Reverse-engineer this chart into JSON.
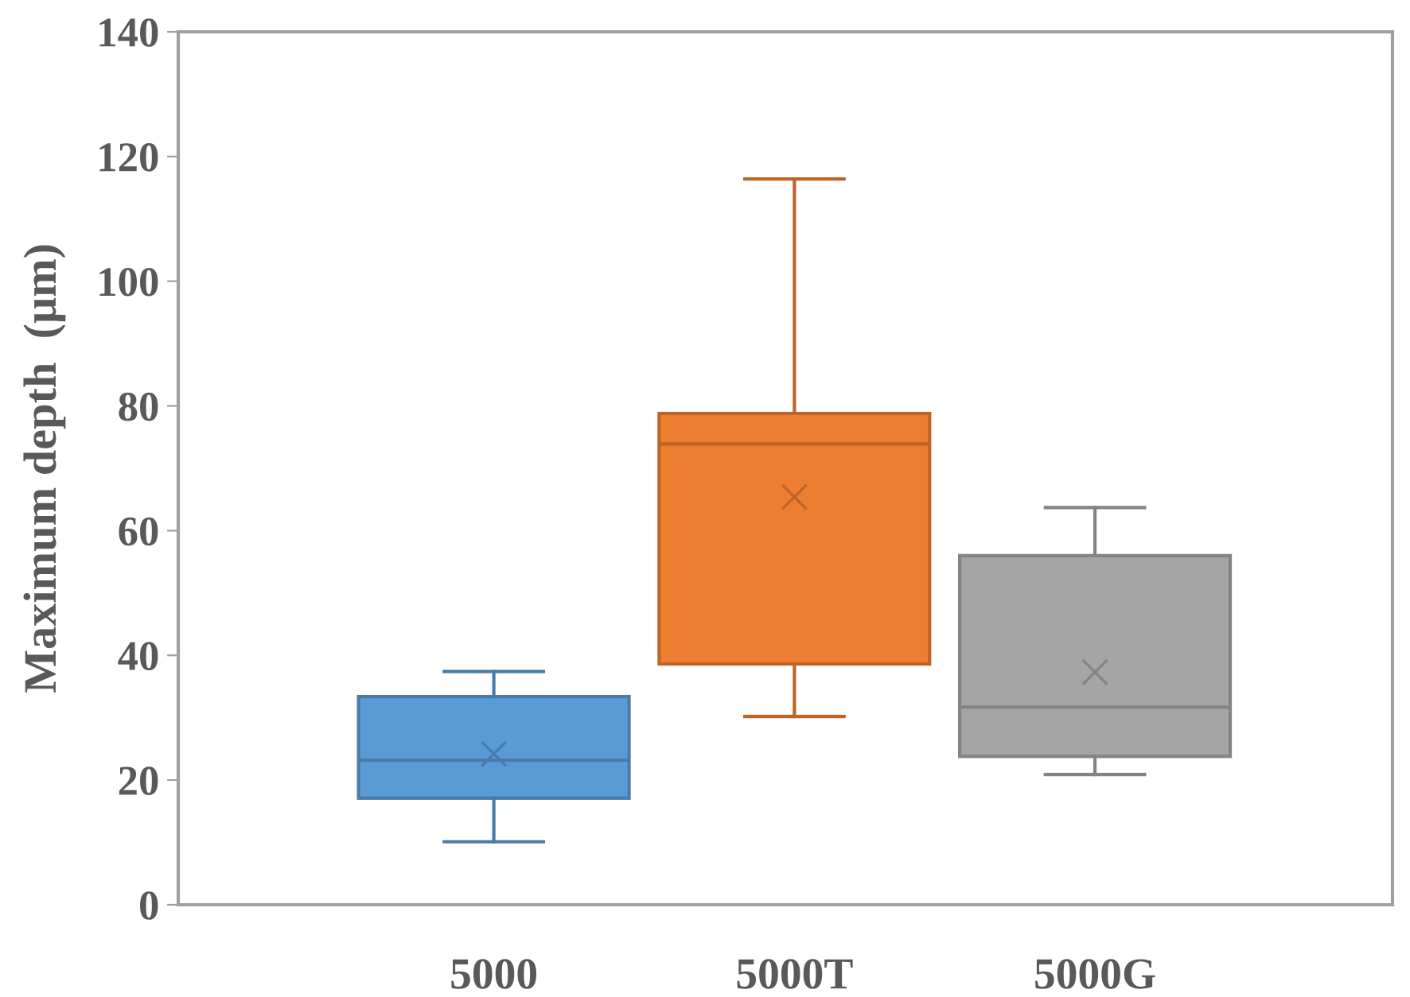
{
  "chart_data": {
    "type": "box",
    "ylabel": "Maximum depth  (μm)",
    "categories": [
      "5000",
      "5000T",
      "5000G"
    ],
    "colors": [
      "#5b9bd5",
      "#ed7d31",
      "#a5a5a5"
    ],
    "boxes": [
      {
        "low": 10.1,
        "q1": 17.1,
        "median": 23.2,
        "q3": 33.4,
        "high": 37.4,
        "mean": 24.2
      },
      {
        "low": 30.2,
        "q1": 38.6,
        "median": 73.9,
        "q3": 78.8,
        "high": 116.4,
        "mean": 65.4
      },
      {
        "low": 20.9,
        "q1": 23.8,
        "median": 31.7,
        "q3": 56.0,
        "high": 63.7,
        "mean": 37.3
      }
    ],
    "ylim": [
      0,
      140
    ],
    "yticks": [
      0,
      20,
      40,
      60,
      80,
      100,
      120,
      140
    ],
    "grid": false,
    "marker": "cross"
  }
}
